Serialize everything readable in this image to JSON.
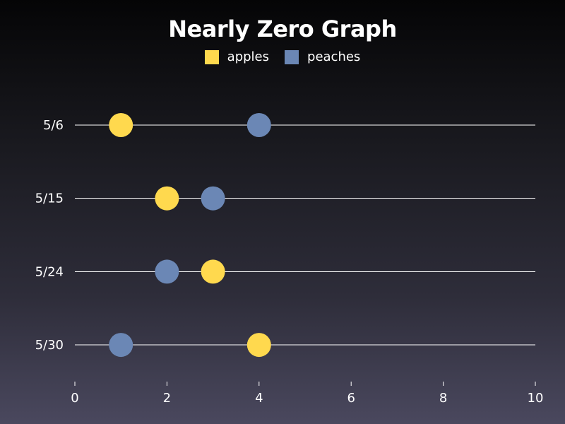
{
  "chart_data": {
    "type": "scatter",
    "title": "Nearly Zero Graph",
    "categories": [
      "5/6",
      "5/15",
      "5/24",
      "5/30"
    ],
    "series": [
      {
        "name": "apples",
        "color": "#ffd94e",
        "values": [
          1,
          2,
          3,
          4
        ]
      },
      {
        "name": "peaches",
        "color": "#6b87b5",
        "values": [
          4,
          3,
          2,
          1
        ]
      }
    ],
    "xlim": [
      0,
      10
    ],
    "xticks": [
      "0",
      "2",
      "4",
      "6",
      "8",
      "10"
    ],
    "xlabel": "",
    "ylabel": "",
    "grid": true,
    "legend_position": "top-center"
  }
}
